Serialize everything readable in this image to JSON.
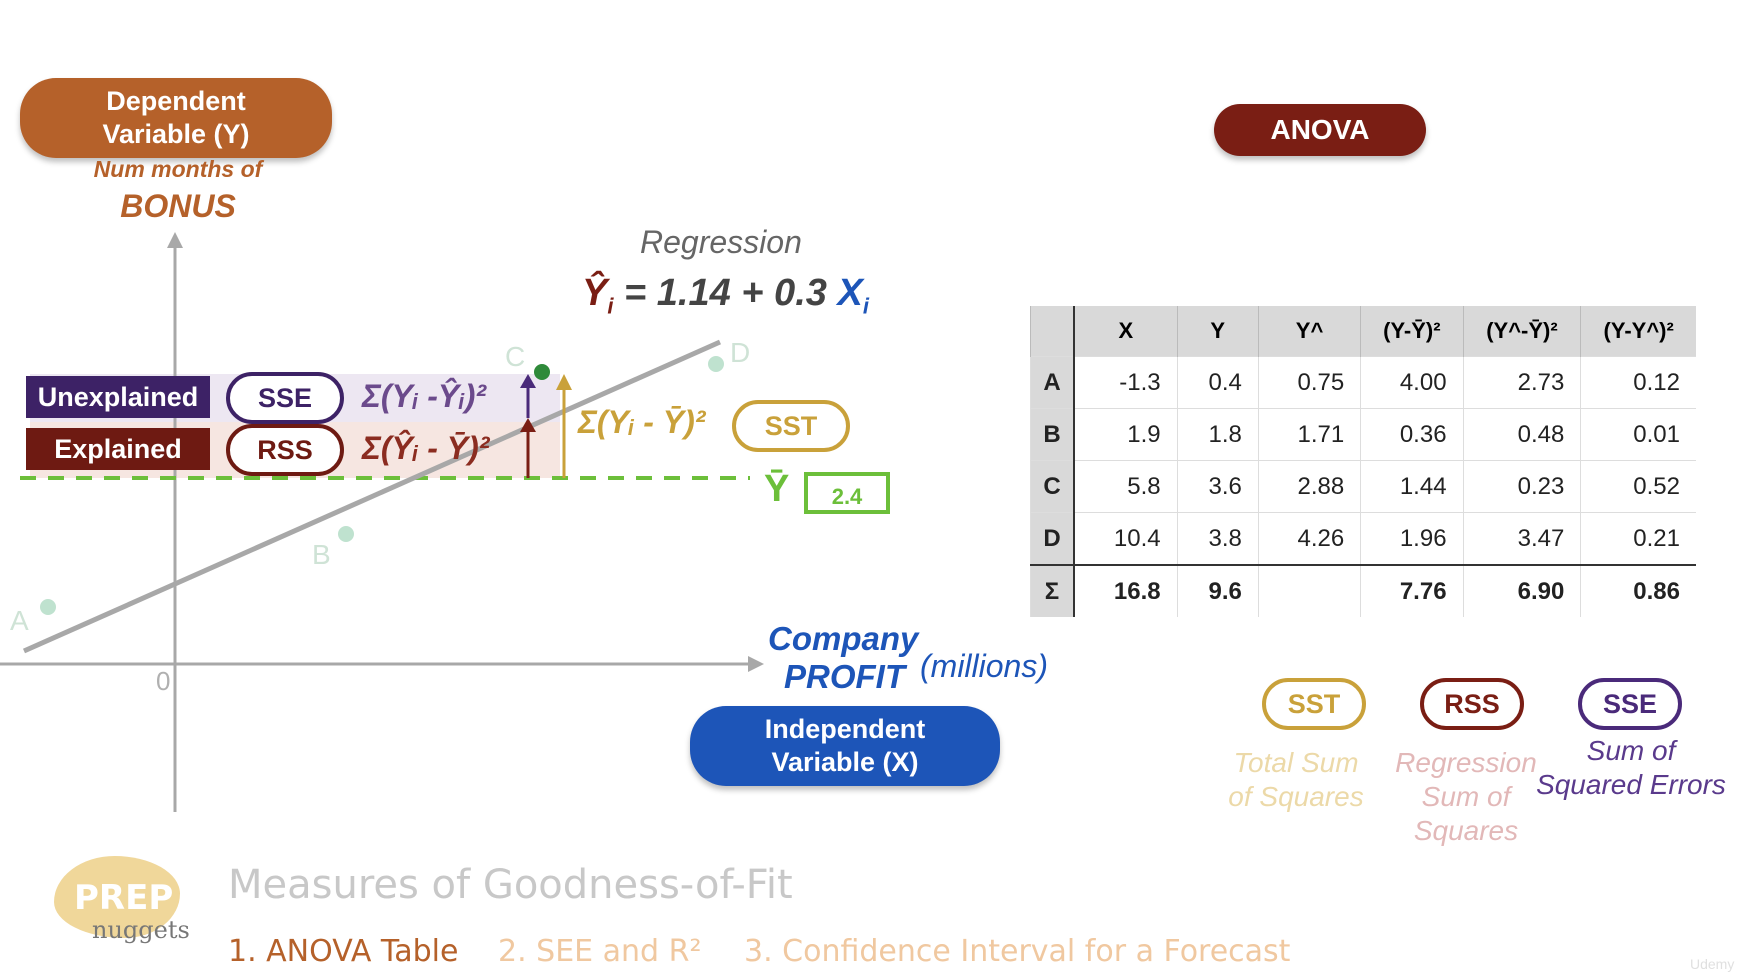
{
  "dependent_variable": {
    "title": "Dependent Variable (Y)",
    "subtitle": "Num months of",
    "name": "BONUS"
  },
  "independent_variable": {
    "title": "Independent Variable (X)",
    "name_line1": "Company",
    "name_line2": "PROFIT",
    "unit": "(millions)"
  },
  "regression": {
    "label": "Regression",
    "equation_lhs": "Ŷ",
    "equation_sub": "i",
    "equation_mid": " = 1.14 + 0.3 ",
    "equation_x": "X",
    "equation_x_sub": "i"
  },
  "origin_label": "0",
  "points": [
    {
      "label": "A"
    },
    {
      "label": "B"
    },
    {
      "label": "C"
    },
    {
      "label": "D"
    }
  ],
  "bands": {
    "unexplained_label": "Unexplained",
    "explained_label": "Explained",
    "sse_badge": "SSE",
    "rss_badge": "RSS",
    "sst_badge": "SST",
    "sse_formula": "Σ(Yᵢ -Ŷᵢ)²",
    "rss_formula": "Σ(Ŷᵢ - Ȳ)²",
    "sst_formula": "Σ(Yᵢ - Ȳ)²"
  },
  "mean": {
    "symbol": "Ȳ",
    "value": "2.4"
  },
  "anova": {
    "title": "ANOVA",
    "headers": [
      "",
      "X",
      "Y",
      "Y^",
      "(Y-Ȳ)²",
      "(Y^-Ȳ)²",
      "(Y-Y^)²"
    ],
    "rows": [
      {
        "label": "A",
        "cells": [
          "-1.3",
          "0.4",
          "0.75",
          "4.00",
          "2.73",
          "0.12"
        ]
      },
      {
        "label": "B",
        "cells": [
          "1.9",
          "1.8",
          "1.71",
          "0.36",
          "0.48",
          "0.01"
        ]
      },
      {
        "label": "C",
        "cells": [
          "5.8",
          "3.6",
          "2.88",
          "1.44",
          "0.23",
          "0.52"
        ]
      },
      {
        "label": "D",
        "cells": [
          "10.4",
          "3.8",
          "4.26",
          "1.96",
          "3.47",
          "0.21"
        ]
      }
    ],
    "sum_row": {
      "label": "Σ",
      "cells": [
        "16.8",
        "9.6",
        "",
        "7.76",
        "6.90",
        "0.86"
      ]
    }
  },
  "legend": [
    {
      "badge": "SST",
      "desc_line1": "Total Sum",
      "desc_line2": "of Squares",
      "desc_line3": ""
    },
    {
      "badge": "RSS",
      "desc_line1": "Regression",
      "desc_line2": "Sum of",
      "desc_line3": "Squares"
    },
    {
      "badge": "SSE",
      "desc_line1": "Sum of",
      "desc_line2": "Squared Errors",
      "desc_line3": ""
    }
  ],
  "footer": {
    "logo_top": "PREP",
    "logo_bottom": "nuggets",
    "heading": "Measures of Goodness-of-Fit",
    "nav": [
      "1. ANOVA Table",
      "2. SEE and R²",
      "3. Confidence Interval for a Forecast"
    ],
    "watermark": "Udemy"
  },
  "colors": {
    "brown": "#b5612a",
    "dark_red": "#7a1e14",
    "blue": "#1d55b8",
    "purple": "#4a2a7a",
    "gold": "#c9a13a",
    "green": "#6cbf3a",
    "gray": "#9a9a9a"
  }
}
